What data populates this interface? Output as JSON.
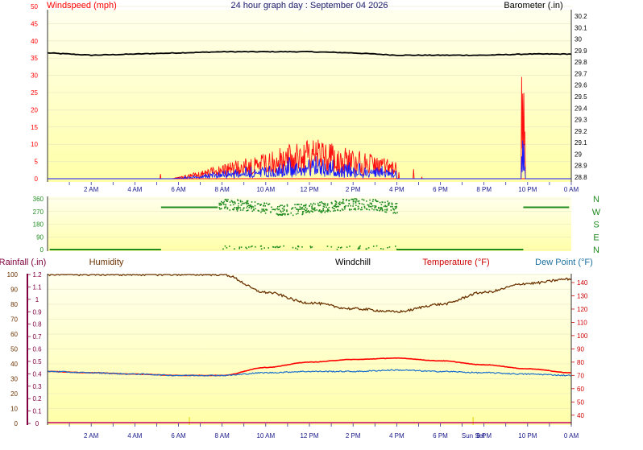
{
  "colors": {
    "plot_top": "#ffffa8",
    "plot_bottom": "#ffffee",
    "speed": "#ff1010",
    "gust_dir": "#1a1aff",
    "barometer": "#000000",
    "direction": "#208c20",
    "humidity": "#6b3200",
    "temperature": "#ff0000",
    "dewpoint": "#1a6fcc",
    "rain_axis": "#800040",
    "dew_label": "#1a6fa0",
    "time_axis": "#1a1a8c"
  },
  "top_panel": {
    "title": "24 hour graph day : September 04 2026",
    "left_label": "Windspeed (mph)",
    "right_label": "Barometer (.in)",
    "left_ticks": [
      "50",
      "45",
      "40",
      "35",
      "30",
      "25",
      "20",
      "15",
      "10",
      "5",
      "0"
    ],
    "right_ticks": [
      "30.2",
      "30.1",
      "30",
      "29.9",
      "29.8",
      "29.7",
      "29.6",
      "29.5",
      "29.4",
      "29.3",
      "29.2",
      "29.1",
      "29",
      "28.9",
      "28.8"
    ],
    "time_ticks": [
      "2 AM",
      "4 AM",
      "6 AM",
      "8 AM",
      "10 AM",
      "12 PM",
      "2 PM",
      "4 PM",
      "6 PM",
      "8 PM",
      "10 PM",
      "0 AM"
    ]
  },
  "middle_panel": {
    "left_ticks": [
      "360",
      "270",
      "180",
      "90",
      "0"
    ],
    "compass": [
      "N",
      "W",
      "S",
      "E",
      "N"
    ]
  },
  "bottom_panel": {
    "rain_label": "Rainfall (.in)",
    "humidity_label": "Humidity",
    "windchill_label": "Windchill",
    "temp_label": "Temperature (°F)",
    "dew_label": "Dew Point (°F)",
    "humidity_ticks": [
      "100",
      "90",
      "80",
      "70",
      "60",
      "50",
      "40",
      "30",
      "20",
      "10",
      "0"
    ],
    "rain_ticks": [
      "1.2",
      "1.1",
      "1",
      "0.9",
      "0.8",
      "0.7",
      "0.6",
      "0.5",
      "0.4",
      "0.3",
      "0.2",
      "0.1",
      "0"
    ],
    "temp_ticks": [
      "140",
      "130",
      "120",
      "110",
      "100",
      "90",
      "80",
      "70",
      "60",
      "50",
      "40"
    ],
    "time_ticks": [
      "2 AM",
      "4 AM",
      "6 AM",
      "8 AM",
      "10 AM",
      "12 PM",
      "2 PM",
      "4 PM",
      "6 PM",
      "Sun Set",
      "8 PM",
      "10 PM",
      "0 AM"
    ]
  },
  "chart_data": [
    {
      "type": "line",
      "title": "24 hour graph day : September 04 2026",
      "x": [
        "0 AM",
        "2 AM",
        "4 AM",
        "6 AM",
        "8 AM",
        "10 AM",
        "12 PM",
        "2 PM",
        "4 PM",
        "6 PM",
        "8 PM",
        "10 PM",
        "0 AM"
      ],
      "ylabel": "Windspeed (mph)",
      "ylim": [
        0,
        50
      ],
      "y2label": "Barometer (.in)",
      "y2lim": [
        28.75,
        30.25
      ],
      "series": [
        {
          "values": [
            0,
            0,
            0,
            1,
            4,
            7,
            8,
            6,
            3,
            1,
            0,
            0.5,
            0
          ]
        },
        {
          "values": [
            0,
            0,
            0,
            0.5,
            2,
            3,
            3,
            2,
            1,
            0,
            0,
            0,
            0
          ]
        },
        {
          "values": [
            29.88,
            29.86,
            29.87,
            29.88,
            29.89,
            29.89,
            29.89,
            29.88,
            29.86,
            29.86,
            29.86,
            29.87,
            29.87
          ]
        }
      ]
    },
    {
      "type": "scatter",
      "x": [
        "0 AM",
        "2 AM",
        "4 AM",
        "6 AM",
        "8 AM",
        "10 AM",
        "12 PM",
        "2 PM",
        "4 PM",
        "6 PM",
        "8 PM",
        "10 PM",
        "0 AM"
      ],
      "ylim": [
        0,
        360
      ],
      "series": [
        {
          "values": [
            0,
            0,
            0,
            300,
            300,
            310,
            320,
            300,
            0,
            0,
            0,
            300,
            300
          ]
        }
      ]
    },
    {
      "type": "line",
      "x": [
        "0 AM",
        "2 AM",
        "4 AM",
        "6 AM",
        "8 AM",
        "10 AM",
        "12 PM",
        "2 PM",
        "4 PM",
        "6 PM",
        "8 PM",
        "10 PM",
        "0 AM"
      ],
      "ylabel": "Humidity",
      "ylim": [
        0,
        100
      ],
      "y2label": "Temperature (°F)",
      "y2lim": [
        30,
        145
      ],
      "series": [
        {
          "name": "Humidity",
          "values": [
            100,
            100,
            100,
            100,
            100,
            88,
            81,
            77,
            75,
            80,
            88,
            94,
            97
          ]
        },
        {
          "name": "Temperature (°F)",
          "values": [
            73,
            72,
            71,
            70,
            70,
            76,
            80,
            82,
            83,
            81,
            78,
            75,
            72
          ]
        },
        {
          "name": "Dew Point (°F)",
          "values": [
            73,
            72,
            71,
            70,
            70,
            72,
            73,
            73,
            74,
            73,
            72,
            71,
            70
          ]
        },
        {
          "name": "Rainfall (.in)",
          "values": [
            0,
            0,
            0,
            0,
            0,
            0,
            0,
            0,
            0,
            0,
            0,
            0,
            0
          ]
        }
      ]
    }
  ]
}
